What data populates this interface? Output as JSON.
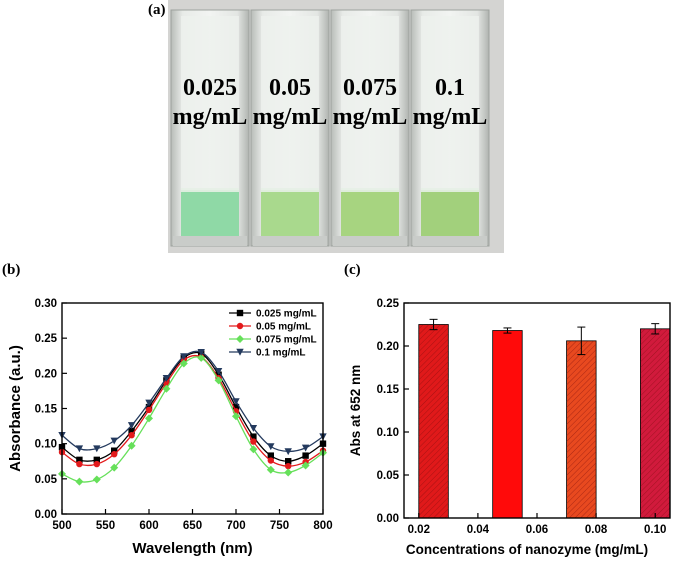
{
  "panel_labels": {
    "a": "(a)",
    "b": "(b)",
    "c": "(c)"
  },
  "photo": {
    "cuvettes": [
      {
        "line1": "0.025",
        "line2": "mg/mL",
        "liquid": "#8fd9a6"
      },
      {
        "line1": "0.05",
        "line2": "mg/mL",
        "liquid": "#a9d98d"
      },
      {
        "line1": "0.075",
        "line2": "mg/mL",
        "liquid": "#a7d480"
      },
      {
        "line1": "0.1",
        "line2": "mg/mL",
        "liquid": "#a2d07c"
      }
    ],
    "background": "#d6d6d4"
  },
  "chart_data": [
    {
      "type": "line",
      "xlabel": "Wavelength (nm)",
      "ylabel": "Absorbance (a.u.)",
      "xlim": [
        500,
        800
      ],
      "ylim": [
        0.0,
        0.3
      ],
      "xticks": [
        500,
        550,
        600,
        650,
        700,
        750,
        800
      ],
      "yticks": [
        0.0,
        0.05,
        0.1,
        0.15,
        0.2,
        0.25,
        0.3
      ],
      "legend_position": "top-right",
      "series": [
        {
          "name": "0.025 mg/mL",
          "color": "#000000",
          "marker": "square",
          "x": [
            500,
            520,
            540,
            560,
            580,
            600,
            620,
            640,
            660,
            680,
            700,
            720,
            740,
            760,
            780,
            800
          ],
          "y": [
            0.095,
            0.077,
            0.077,
            0.09,
            0.118,
            0.152,
            0.19,
            0.222,
            0.228,
            0.198,
            0.152,
            0.11,
            0.083,
            0.075,
            0.083,
            0.1
          ]
        },
        {
          "name": "0.05 mg/mL",
          "color": "#e31a1c",
          "marker": "circle",
          "x": [
            500,
            520,
            540,
            560,
            580,
            600,
            620,
            640,
            660,
            680,
            700,
            720,
            740,
            760,
            780,
            800
          ],
          "y": [
            0.088,
            0.071,
            0.071,
            0.085,
            0.112,
            0.148,
            0.186,
            0.219,
            0.223,
            0.193,
            0.146,
            0.103,
            0.076,
            0.068,
            0.074,
            0.09
          ]
        },
        {
          "name": "0.075 mg/mL",
          "color": "#66e05a",
          "marker": "diamond",
          "x": [
            500,
            520,
            540,
            560,
            580,
            600,
            620,
            640,
            660,
            680,
            700,
            720,
            740,
            760,
            780,
            800
          ],
          "y": [
            0.057,
            0.046,
            0.049,
            0.066,
            0.097,
            0.136,
            0.178,
            0.214,
            0.222,
            0.19,
            0.139,
            0.092,
            0.063,
            0.059,
            0.069,
            0.087
          ]
        },
        {
          "name": "0.1 mg/mL",
          "color": "#243a5e",
          "marker": "triangle-down",
          "x": [
            500,
            520,
            540,
            560,
            580,
            600,
            620,
            640,
            660,
            680,
            700,
            720,
            740,
            760,
            780,
            800
          ],
          "y": [
            0.112,
            0.093,
            0.093,
            0.104,
            0.126,
            0.158,
            0.193,
            0.224,
            0.23,
            0.203,
            0.16,
            0.122,
            0.096,
            0.089,
            0.094,
            0.11
          ]
        }
      ]
    },
    {
      "type": "bar",
      "xlabel": "Concentrations of nanozyme (mg/mL)",
      "ylabel": "Abs at 652 nm",
      "xlim": [
        0.015,
        0.105
      ],
      "ylim": [
        0.0,
        0.25
      ],
      "xticks": [
        "0.02",
        "0.04",
        "0.06",
        "0.08",
        "0.10"
      ],
      "yticks": [
        "0.00",
        "0.05",
        "0.10",
        "0.15",
        "0.20",
        "0.25"
      ],
      "bar_width": 0.01,
      "categories": [
        "0.025",
        "0.05",
        "0.075",
        "0.1"
      ],
      "x": [
        0.025,
        0.05,
        0.075,
        0.1
      ],
      "values": [
        0.225,
        0.218,
        0.206,
        0.22
      ],
      "errors": [
        0.006,
        0.003,
        0.016,
        0.006
      ],
      "colors": [
        "#e0191a",
        "#ff0a0a",
        "#e8491f",
        "#d11a3c"
      ],
      "hatched": [
        true,
        false,
        true,
        true
      ]
    }
  ]
}
